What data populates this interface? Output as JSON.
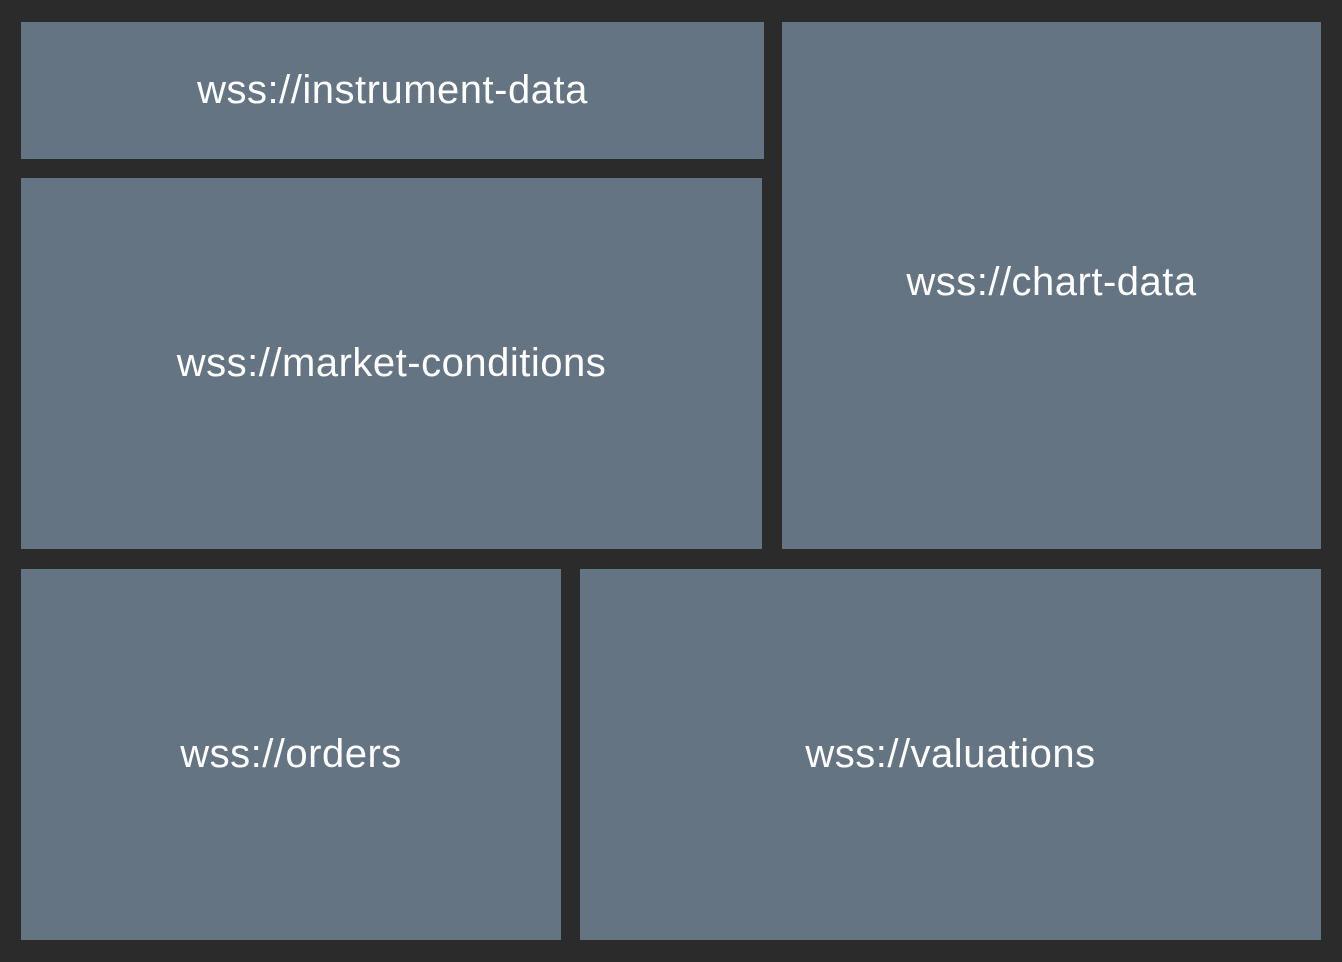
{
  "panels": {
    "instrument_data": {
      "label": "wss://instrument-data"
    },
    "market_conditions": {
      "label": "wss://market-conditions"
    },
    "chart_data": {
      "label": "wss://chart-data"
    },
    "orders": {
      "label": "wss://orders"
    },
    "valuations": {
      "label": "wss://valuations"
    }
  },
  "colors": {
    "background": "#2b2b2b",
    "panel": "#657482",
    "text": "#ffffff"
  }
}
